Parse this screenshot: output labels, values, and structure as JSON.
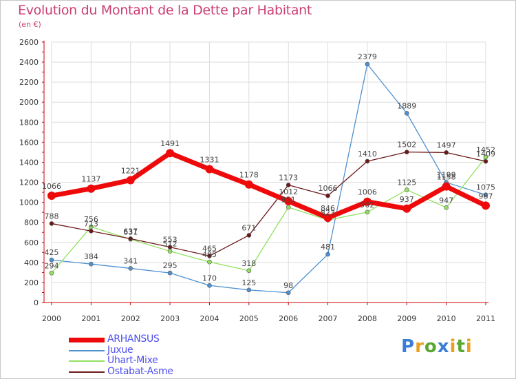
{
  "header": {
    "title": "Evolution du Montant de la Dette par Habitant",
    "subtitle": "(en €)"
  },
  "chart_data": {
    "type": "line",
    "title": "Evolution du Montant de la Dette par Habitant",
    "subtitle": "(en €)",
    "xlabel": "",
    "ylabel": "",
    "x": [
      "2000",
      "2001",
      "2002",
      "2003",
      "2004",
      "2005",
      "2006",
      "2007",
      "2008",
      "2009",
      "2010",
      "2011"
    ],
    "ylim": [
      0,
      2600
    ],
    "yticks": [
      0,
      200,
      400,
      600,
      800,
      1000,
      1200,
      1400,
      1600,
      1800,
      2000,
      2200,
      2400,
      2600
    ],
    "grid": true,
    "legend_position": "bottom-left",
    "series": [
      {
        "name": "ARHANSUS",
        "color": "#ee0a0a",
        "values": [
          1066,
          1137,
          1221,
          1491,
          1331,
          1178,
          1012,
          846,
          1006,
          937,
          1158,
          967
        ]
      },
      {
        "name": "Juxue",
        "color": "#4f91cf",
        "values": [
          425,
          384,
          341,
          295,
          170,
          125,
          98,
          481,
          2379,
          1889,
          1199,
          1075
        ]
      },
      {
        "name": "Uhart-Mixe",
        "color": "#92e060",
        "values": [
          294,
          756,
          631,
          512,
          405,
          318,
          951,
          823,
          902,
          1125,
          947,
          1452
        ]
      },
      {
        "name": "Ostabat-Asme",
        "color": "#6b1818",
        "values": [
          788,
          713,
          637,
          553,
          465,
          671,
          1173,
          1066,
          1410,
          1502,
          1497,
          1409
        ]
      }
    ]
  },
  "branding": {
    "logo_letters": [
      "P",
      "r",
      "o",
      "x",
      "i",
      "t",
      "i"
    ],
    "logo_colors": [
      "#3a7fd5",
      "#e9a020",
      "#5aa832",
      "#3a7fd5",
      "#e9a020",
      "#5aa832",
      "#e9a020"
    ]
  }
}
